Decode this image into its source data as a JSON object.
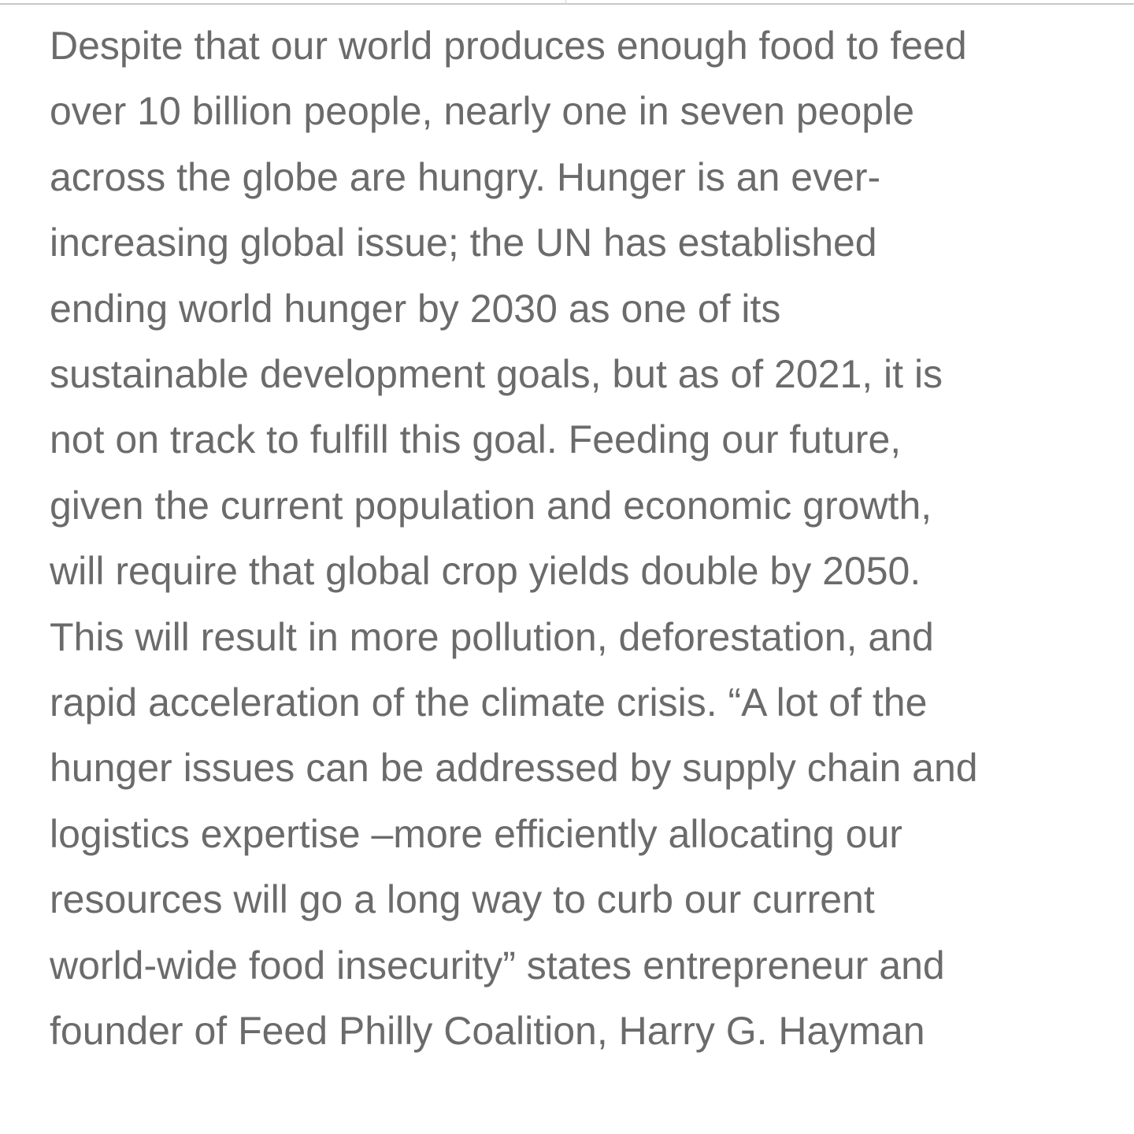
{
  "article": {
    "paragraph_lines": [
      "Despite that our world produces enough food to feed",
      "over 10 billion people, nearly one in seven people",
      "across the globe are hungry. Hunger is an ever-",
      "increasing global issue; the UN has established",
      "ending world hunger by 2030 as one of its",
      "sustainable development goals, but as of 2021, it is",
      "not on track to fulfill this goal. Feeding our future,",
      "given the current population and economic growth,",
      "will require that global crop yields double by 2050.",
      "This will result in more pollution, deforestation, and",
      "rapid acceleration of the climate crisis. “A lot of the",
      "hunger issues can be addressed by supply chain and",
      "logistics expertise –more efficiently allocating our",
      "resources will go a long way to curb our current",
      "world-wide food insecurity” states entrepreneur and",
      "founder of Feed Philly Coalition, Harry G. Hayman"
    ]
  },
  "colors": {
    "text": "#6b6b6b",
    "background": "#ffffff",
    "rule": "#c8c8c8"
  }
}
